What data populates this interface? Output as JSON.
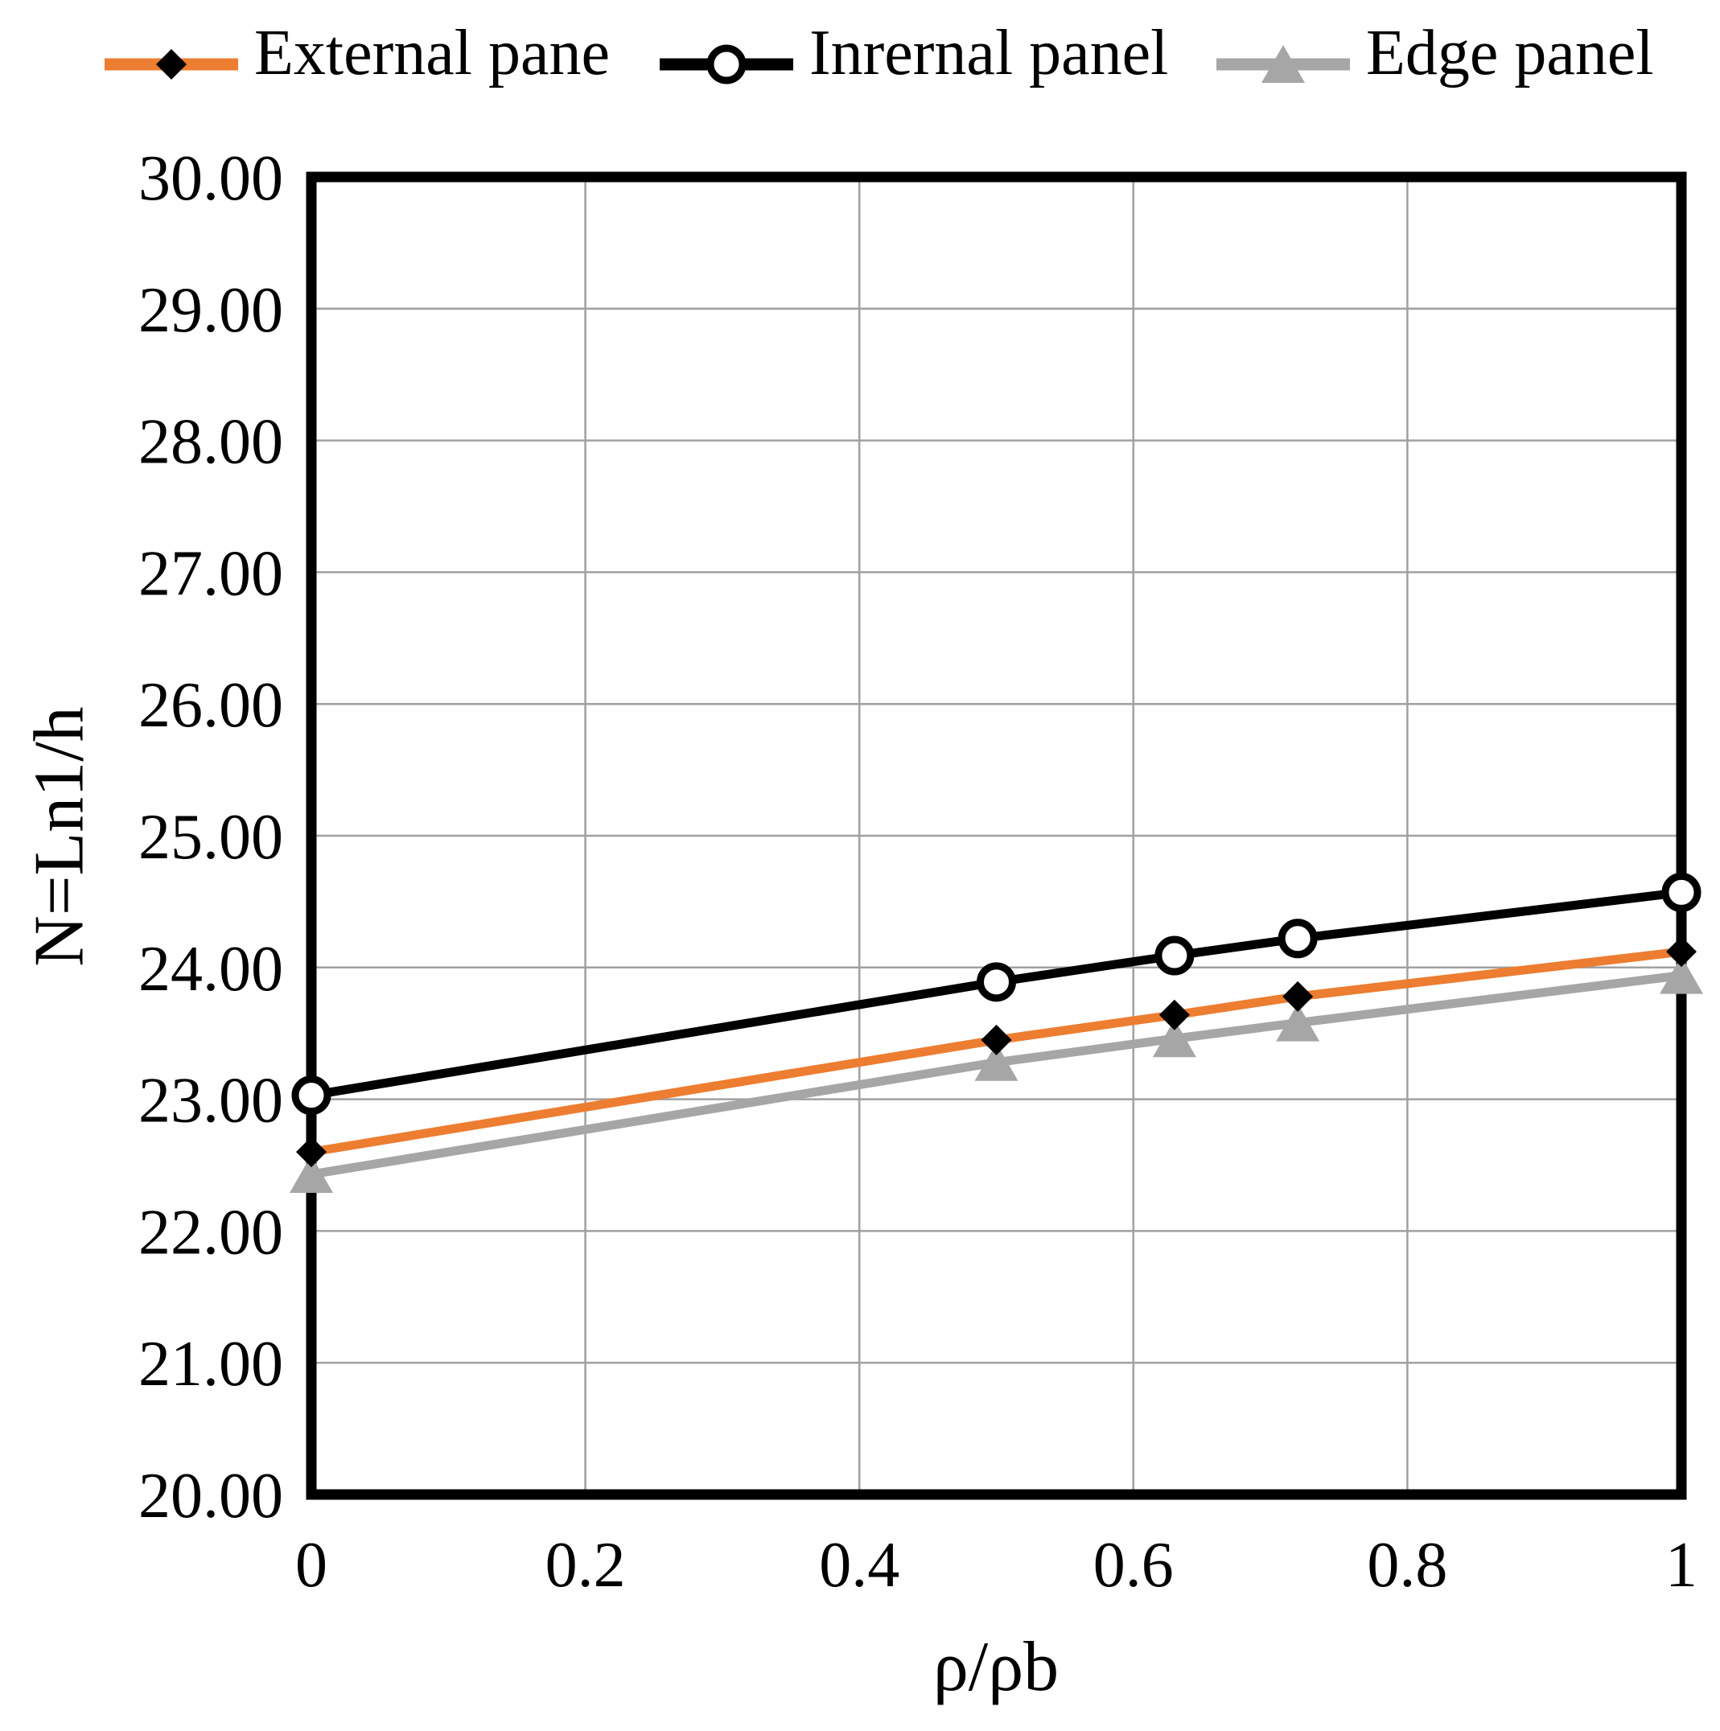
{
  "chart_data": {
    "type": "line",
    "x": [
      0,
      0.5,
      0.63,
      0.72,
      1
    ],
    "series": [
      {
        "name": "External pane",
        "color": "#ED7D31",
        "marker": "diamond",
        "marker_color": "#000000",
        "values": [
          22.6,
          23.45,
          23.64,
          23.78,
          24.12
        ]
      },
      {
        "name": "Inrernal panel",
        "color": "#000000",
        "marker": "circle-open",
        "marker_color": "#000000",
        "marker_fill": "#ffffff",
        "values": [
          23.03,
          23.89,
          24.09,
          24.22,
          24.57
        ]
      },
      {
        "name": "Edge panel",
        "color": "#A6A6A6",
        "marker": "triangle",
        "marker_color": "#A6A6A6",
        "values": [
          22.43,
          23.28,
          23.46,
          23.58,
          23.94
        ]
      }
    ],
    "title": "",
    "xlabel": "ρ/ρb",
    "ylabel": "N=Ln1/h",
    "xlim": [
      0,
      1
    ],
    "ylim": [
      20,
      30
    ],
    "x_ticks": [
      "0",
      "0.2",
      "0.4",
      "0.6",
      "0.8",
      "1"
    ],
    "x_tick_values": [
      0,
      0.2,
      0.4,
      0.6,
      0.8,
      1
    ],
    "y_ticks": [
      "30.00",
      "29.00",
      "28.00",
      "27.00",
      "26.00",
      "25.00",
      "24.00",
      "23.00",
      "22.00",
      "21.00",
      "20.00"
    ],
    "y_tick_values": [
      30,
      29,
      28,
      27,
      26,
      25,
      24,
      23,
      22,
      21,
      20
    ],
    "grid": true,
    "legend_position": "top",
    "gridline_color": "#A0A0A0",
    "border_color": "#000000",
    "background_color": "#ffffff",
    "draw_order": [
      2,
      0,
      1
    ]
  }
}
